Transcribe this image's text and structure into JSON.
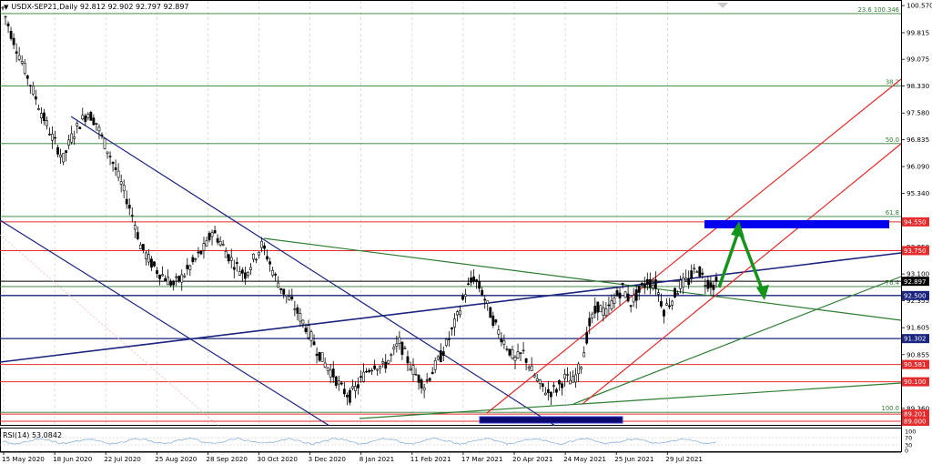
{
  "header": {
    "symbol_line": "USDX-SEP21,Daily  92.812 92.902 92.797 92.897"
  },
  "rsi": {
    "label": "RSI(14) 53.0842",
    "scale_labels": [
      "100",
      "70",
      "30",
      "0"
    ]
  },
  "chart_data": {
    "type": "candlestick",
    "title": "USDX-SEP21,Daily",
    "ohlc_last": {
      "open": 92.812,
      "high": 92.902,
      "low": 92.797,
      "close": 92.897
    },
    "ylim": [
      88.9,
      100.7
    ],
    "price_axis_ticks": [
      "100.570",
      "99.815",
      "99.075",
      "98.330",
      "97.580",
      "96.835",
      "96.090",
      "95.340",
      "94.595",
      "93.850",
      "93.100",
      "92.355",
      "91.605",
      "90.855",
      "90.110",
      "89.360"
    ],
    "time_axis_labels": [
      "15 May 2020",
      "18 Jun 2020",
      "22 Jul 2020",
      "25 Aug 2020",
      "28 Sep 2020",
      "30 Oct 2020",
      "3 Dec 2020",
      "8 Jan 2021",
      "11 Feb 2021",
      "17 Mar 2021",
      "20 Apr 2021",
      "24 May 2021",
      "25 Jun 2021",
      "29 Jul 2021"
    ],
    "fib_levels": [
      {
        "label": "23.6 100.346",
        "price": 100.346
      },
      {
        "label": "38.2",
        "price": 98.33
      },
      {
        "label": "50.0",
        "price": 96.73
      },
      {
        "label": "61.8",
        "price": 94.7
      },
      {
        "label": "76.4",
        "price": 92.75
      },
      {
        "label": "100.0",
        "price": 89.25
      }
    ],
    "horizontal_levels": [
      {
        "price": 94.55,
        "label": "94.550",
        "color": "#e52b2b",
        "badge_bg": "#e52b2b",
        "badge_fg": "#ffffff"
      },
      {
        "price": 93.75,
        "label": "93.750",
        "color": "#e52b2b",
        "badge_bg": "#e52b2b",
        "badge_fg": "#ffffff"
      },
      {
        "price": 92.897,
        "label": "92.897",
        "color": "#000000",
        "badge_bg": "#000000",
        "badge_fg": "#ffffff"
      },
      {
        "price": 92.5,
        "label": "92.500",
        "color": "#1a237e",
        "badge_bg": "#1a237e",
        "badge_fg": "#ffffff"
      },
      {
        "price": 91.302,
        "label": "91.302",
        "color": "#1a237e",
        "badge_bg": "#1a237e",
        "badge_fg": "#ffffff"
      },
      {
        "price": 90.581,
        "label": "90.581",
        "color": "#e52b2b",
        "badge_bg": "#e52b2b",
        "badge_fg": "#ffffff"
      },
      {
        "price": 90.1,
        "label": "90.100",
        "color": "#e52b2b",
        "badge_bg": "#e52b2b",
        "badge_fg": "#ffffff"
      },
      {
        "price": 89.201,
        "label": "89.201",
        "color": "#e52b2b",
        "badge_bg": "#e52b2b",
        "badge_fg": "#ffffff"
      },
      {
        "price": 89.0,
        "label": "89.000",
        "color": "#e52b2b",
        "badge_bg": "#e52b2b",
        "badge_fg": "#ffffff"
      }
    ],
    "price_path": [
      [
        0,
        100.5
      ],
      [
        3,
        99.8
      ],
      [
        6,
        99.2
      ],
      [
        10,
        98.4
      ],
      [
        14,
        97.6
      ],
      [
        18,
        96.9
      ],
      [
        22,
        96.3
      ],
      [
        25,
        96.9
      ],
      [
        28,
        97.3
      ],
      [
        31,
        97.6
      ],
      [
        34,
        97.3
      ],
      [
        36,
        96.9
      ],
      [
        39,
        96.4
      ],
      [
        42,
        95.8
      ],
      [
        45,
        95.2
      ],
      [
        48,
        94.5
      ],
      [
        50,
        93.9
      ],
      [
        53,
        93.5
      ],
      [
        56,
        93.2
      ],
      [
        59,
        93.0
      ],
      [
        62,
        92.8
      ],
      [
        65,
        93.0
      ],
      [
        68,
        93.3
      ],
      [
        71,
        93.6
      ],
      [
        74,
        93.9
      ],
      [
        76,
        94.3
      ],
      [
        79,
        94.0
      ],
      [
        82,
        93.6
      ],
      [
        85,
        93.3
      ],
      [
        88,
        93.1
      ],
      [
        91,
        93.5
      ],
      [
        94,
        93.9
      ],
      [
        96,
        93.6
      ],
      [
        99,
        93.0
      ],
      [
        102,
        92.6
      ],
      [
        105,
        92.3
      ],
      [
        108,
        91.9
      ],
      [
        111,
        91.5
      ],
      [
        114,
        91.0
      ],
      [
        117,
        90.6
      ],
      [
        120,
        90.3
      ],
      [
        123,
        89.9
      ],
      [
        126,
        89.7
      ],
      [
        129,
        90.0
      ],
      [
        132,
        90.4
      ],
      [
        135,
        90.6
      ],
      [
        138,
        90.5
      ],
      [
        141,
        90.8
      ],
      [
        144,
        91.2
      ],
      [
        147,
        90.7
      ],
      [
        150,
        90.3
      ],
      [
        153,
        90.0
      ],
      [
        156,
        90.4
      ],
      [
        159,
        90.8
      ],
      [
        162,
        91.3
      ],
      [
        165,
        91.9
      ],
      [
        168,
        92.6
      ],
      [
        171,
        93.0
      ],
      [
        174,
        92.6
      ],
      [
        177,
        92.0
      ],
      [
        180,
        91.5
      ],
      [
        183,
        91.1
      ],
      [
        186,
        90.7
      ],
      [
        189,
        90.9
      ],
      [
        192,
        90.4
      ],
      [
        195,
        90.0
      ],
      [
        198,
        89.8
      ],
      [
        201,
        89.9
      ],
      [
        204,
        90.2
      ],
      [
        207,
        90.1
      ],
      [
        210,
        90.6
      ],
      [
        213,
        91.7
      ],
      [
        216,
        92.2
      ],
      [
        219,
        92.0
      ],
      [
        222,
        92.4
      ],
      [
        225,
        92.7
      ],
      [
        228,
        92.3
      ],
      [
        231,
        92.6
      ],
      [
        234,
        92.9
      ],
      [
        237,
        92.8
      ],
      [
        240,
        92.1
      ],
      [
        243,
        92.4
      ],
      [
        246,
        92.8
      ],
      [
        249,
        92.9
      ],
      [
        252,
        93.3
      ],
      [
        255,
        92.9
      ],
      [
        258,
        92.8
      ],
      [
        260,
        92.9
      ]
    ]
  }
}
